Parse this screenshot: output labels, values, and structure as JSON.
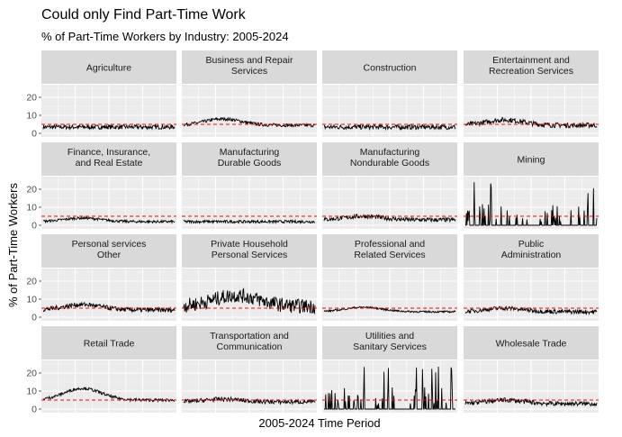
{
  "chart_data": {
    "type": "line",
    "title": "Could only Find Part-Time Work",
    "subtitle": "% of Part-Time Workers by Industry: 2005-2024",
    "xlabel": "2005-2024 Time Period",
    "ylabel": "% of Part-Time Workers",
    "ylim": [
      0,
      25
    ],
    "yticks": [
      0,
      10,
      20
    ],
    "reference_line": {
      "y": 5,
      "color": "#ff0000",
      "style": "dashed"
    },
    "grid": true,
    "panel_background": "#ebebeb",
    "strip_background": "#d9d9d9",
    "line_color": "#000000",
    "n_periods": 240,
    "panels": [
      {
        "label": [
          "Agriculture"
        ],
        "profile": "flat",
        "level": 3.5,
        "noise": 1.2
      },
      {
        "label": [
          "Business and Repair",
          "Services"
        ],
        "profile": "hump",
        "level": 4.5,
        "peak": 8,
        "noise": 0.9
      },
      {
        "label": [
          "Construction"
        ],
        "profile": "flat",
        "level": 3.5,
        "noise": 1.3
      },
      {
        "label": [
          "Entertainment and",
          "Recreation Services"
        ],
        "profile": "hump",
        "level": 4.5,
        "peak": 7.5,
        "noise": 1.4
      },
      {
        "label": [
          "Finance, Insurance,",
          "and Real Estate"
        ],
        "profile": "hump",
        "level": 2,
        "peak": 4,
        "noise": 0.7
      },
      {
        "label": [
          "Manufacturing",
          "Durable Goods"
        ],
        "profile": "flat",
        "level": 2,
        "noise": 0.8
      },
      {
        "label": [
          "Manufacturing",
          "Nondurable Goods"
        ],
        "profile": "hump",
        "level": 3,
        "peak": 5,
        "noise": 1.2
      },
      {
        "label": [
          "Mining"
        ],
        "profile": "spiky",
        "level": 0,
        "noise": 0
      },
      {
        "label": [
          "Personal services",
          "Other"
        ],
        "profile": "hump",
        "level": 4,
        "peak": 7,
        "noise": 1.3
      },
      {
        "label": [
          "Private Household",
          "Personal Services"
        ],
        "profile": "volatile",
        "level": 6,
        "peak": 12,
        "noise": 4
      },
      {
        "label": [
          "Professional and",
          "Related Services"
        ],
        "profile": "hump",
        "level": 3,
        "peak": 5.5,
        "noise": 0.5
      },
      {
        "label": [
          "Public",
          "Administration"
        ],
        "profile": "hump",
        "level": 3,
        "peak": 5,
        "noise": 1.2
      },
      {
        "label": [
          "Retail Trade"
        ],
        "profile": "hump",
        "level": 5,
        "peak": 11.5,
        "noise": 0.8
      },
      {
        "label": [
          "Transportation and",
          "Communication"
        ],
        "profile": "hump",
        "level": 4,
        "peak": 5.5,
        "noise": 1.2
      },
      {
        "label": [
          "Utilities and",
          "Sanitary Services"
        ],
        "profile": "spiky",
        "level": 0,
        "noise": 0
      },
      {
        "label": [
          "Wholesale Trade"
        ],
        "profile": "hump",
        "level": 3,
        "peak": 5,
        "noise": 1.3
      }
    ]
  }
}
